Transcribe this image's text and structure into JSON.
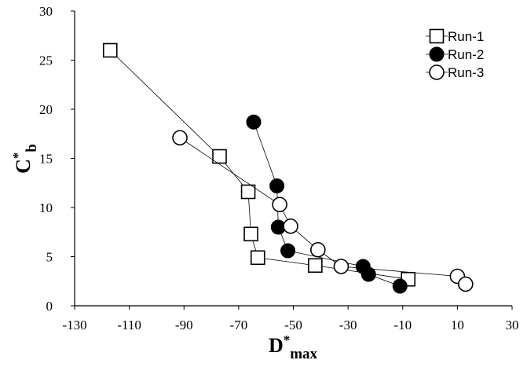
{
  "chart_data": {
    "type": "scatter",
    "xlabel": {
      "main": "D",
      "sup": "*",
      "sub": "max"
    },
    "ylabel": {
      "main": "C",
      "sup": "*",
      "sub": "b"
    },
    "xlim": [
      -130,
      30
    ],
    "ylim": [
      0,
      30
    ],
    "x_ticks": [
      -130,
      -110,
      -90,
      -70,
      -50,
      -30,
      -10,
      10,
      30
    ],
    "y_ticks": [
      0,
      5,
      10,
      15,
      20,
      25,
      30
    ],
    "x_tick_labels": [
      "-130",
      "-110",
      "-90",
      "-70",
      "-50",
      "-30",
      "-10",
      "10",
      "30"
    ],
    "y_tick_labels": [
      "0",
      "5",
      "10",
      "15",
      "20",
      "25",
      "30"
    ],
    "grid": false,
    "legend_position": "top-right",
    "series": [
      {
        "name": "Run-1",
        "marker": "square-open",
        "connected": true,
        "points": [
          {
            "x": -117,
            "y": 26.0
          },
          {
            "x": -77,
            "y": 15.2
          },
          {
            "x": -66.5,
            "y": 11.6
          },
          {
            "x": -65.5,
            "y": 7.3
          },
          {
            "x": -63,
            "y": 4.9
          },
          {
            "x": -42,
            "y": 4.1
          },
          {
            "x": -8,
            "y": 2.7
          }
        ]
      },
      {
        "name": "Run-2",
        "marker": "circle-filled",
        "connected": true,
        "points": [
          {
            "x": -64.5,
            "y": 18.7
          },
          {
            "x": -56,
            "y": 12.2
          },
          {
            "x": -55.5,
            "y": 8.0
          },
          {
            "x": -52,
            "y": 5.6
          },
          {
            "x": -24.5,
            "y": 4.0
          },
          {
            "x": -22.5,
            "y": 3.2
          },
          {
            "x": -11,
            "y": 2.0
          }
        ]
      },
      {
        "name": "Run-3",
        "marker": "circle-open",
        "connected": true,
        "points": [
          {
            "x": -91.5,
            "y": 17.1
          },
          {
            "x": -55,
            "y": 10.3
          },
          {
            "x": -51,
            "y": 8.1
          },
          {
            "x": -41,
            "y": 5.7
          },
          {
            "x": -32.5,
            "y": 4.0
          },
          {
            "x": 10,
            "y": 3.0
          },
          {
            "x": 13,
            "y": 2.2
          }
        ]
      }
    ]
  }
}
